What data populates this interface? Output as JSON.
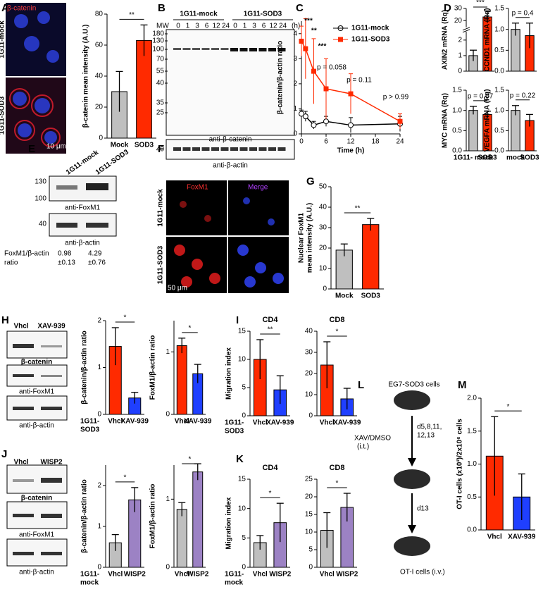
{
  "figure": {
    "panel_letters": [
      "A",
      "B",
      "C",
      "D",
      "E",
      "F",
      "G",
      "H",
      "I",
      "J",
      "K",
      "L",
      "M"
    ],
    "A": {
      "stain": "β-catenin",
      "rows": [
        "1G11-mock",
        "1G11-SOD3"
      ],
      "scale": "10 μm"
    },
    "B": {
      "groups": [
        "1G11-mock",
        "1G11-SOD3"
      ],
      "mw_header": "MW",
      "times": [
        "0",
        "1",
        "3",
        "6",
        "12",
        "24",
        "0",
        "1",
        "3",
        "6",
        "12",
        "24"
      ],
      "unit": "(h)",
      "mw": [
        "180",
        "130",
        "100",
        "70",
        "55",
        "40",
        "35",
        "25"
      ],
      "actin_mw": "40",
      "labels": [
        "anti-β-catenin",
        "anti-β-actin"
      ]
    },
    "E": {
      "lanes": [
        "1G11-mock",
        "1G11-SOD3"
      ],
      "mw": [
        "130",
        "100"
      ],
      "actin_mw": "40",
      "labels": [
        "anti-FoxM1",
        "anti-β-actin"
      ],
      "ratio_label": [
        "FoxM1/β-actin",
        "ratio"
      ],
      "ratios": [
        "0.98",
        "±0.13",
        "4.29",
        "±0.76"
      ]
    },
    "F": {
      "channels": [
        "FoxM1",
        "Merge"
      ],
      "rows": [
        "1G11-mock",
        "1G11-SOD3"
      ],
      "scale": "50 μm"
    },
    "H": {
      "lanes": [
        "Vhcl",
        "XAV-939"
      ],
      "labels": [
        "β-catenin",
        "anti-FoxM1",
        "anti-β-actin"
      ]
    },
    "J": {
      "lanes": [
        "Vhcl",
        "WISP2"
      ],
      "labels": [
        "β-catenin",
        "anti-FoxM1",
        "anti-β-actin"
      ]
    },
    "L": {
      "cells": "EG7-SOD3 cells",
      "treatment": [
        "XAV/DMSO",
        "(i.t.)"
      ],
      "days": [
        "d5,8,11,",
        "12,13"
      ],
      "end": "d13",
      "injection": "OT-I cells (i.v.)"
    }
  },
  "chart_data": [
    {
      "type": "bar",
      "ylabel": "β-catenin mean intensity (A.U.)",
      "categories": [
        "Mock",
        "SOD3"
      ],
      "values": [
        30,
        63
      ],
      "errors": [
        13,
        10
      ],
      "colors": [
        "#bfbfbf",
        "#ff2a00"
      ],
      "ylim": [
        0,
        80
      ],
      "yticks": [
        0,
        20,
        40,
        60,
        80
      ],
      "annotation": "**"
    },
    {
      "type": "line",
      "ylabel": "β-catenin/β-actin ratio",
      "xlabel": "Time (h)",
      "x": [
        0,
        1,
        3,
        6,
        12,
        24
      ],
      "xlim": [
        0,
        24
      ],
      "xticks": [
        0,
        6,
        12,
        18,
        24
      ],
      "ylim": [
        0,
        4.5
      ],
      "yticks": [
        0,
        1,
        2,
        3,
        4
      ],
      "series": [
        {
          "name": "1G11-mock",
          "color": "#000000",
          "marker": "circle",
          "values": [
            0.8,
            0.7,
            0.35,
            0.5,
            0.35,
            0.4
          ],
          "errors": [
            0.15,
            0.2,
            0.15,
            0.2,
            0.3,
            0.3
          ]
        },
        {
          "name": "1G11-SOD3",
          "color": "#ff2a00",
          "marker": "square",
          "values": [
            3.7,
            3.4,
            2.5,
            1.8,
            1.6,
            0.5
          ],
          "errors": [
            0.6,
            1.2,
            1.3,
            1.2,
            0.8,
            0.3
          ]
        }
      ],
      "annotations": [
        "***",
        "**",
        "***",
        "p = 0.058",
        "p = 0.11",
        "p > 0.99"
      ]
    },
    {
      "type": "bar",
      "ylabel": "AXIN2 mRNA (Rq)",
      "categories": [
        null,
        null
      ],
      "values": [
        1.0,
        23
      ],
      "errors": [
        0.35,
        5
      ],
      "colors": [
        "#bfbfbf",
        "#ff2a00"
      ],
      "ylim": [
        0,
        30
      ],
      "axis_break": [
        2.5,
        15
      ],
      "yticks": [
        0,
        1,
        2,
        20,
        30
      ],
      "annotation": "***"
    },
    {
      "type": "bar",
      "ylabel": "CCND1 mRNA (Rq)",
      "categories": [
        null,
        null
      ],
      "values": [
        1.0,
        0.85
      ],
      "errors": [
        0.15,
        0.3
      ],
      "colors": [
        "#bfbfbf",
        "#ff2a00"
      ],
      "ylim": [
        0,
        1.5
      ],
      "yticks": [
        {
          "value": 0,
          "label": "0.0"
        },
        {
          "value": 0.5,
          "label": "0.5"
        },
        {
          "value": 1,
          "label": "1.0"
        },
        {
          "value": 1.5,
          "label": "1.5"
        }
      ],
      "annotation": "p = 0.4"
    },
    {
      "type": "bar",
      "ylabel": "MYC mRNA (Rq)",
      "categories": [
        "1G11- mock",
        "SOD3"
      ],
      "values": [
        1.0,
        0.9
      ],
      "errors": [
        0.1,
        0.08
      ],
      "colors": [
        "#bfbfbf",
        "#ff2a00"
      ],
      "ylim": [
        0,
        1.5
      ],
      "yticks": [
        {
          "value": 0,
          "label": "0.0"
        },
        {
          "value": 0.5,
          "label": "0.5"
        },
        {
          "value": 1,
          "label": "1.0"
        },
        {
          "value": 1.5,
          "label": "1.5"
        }
      ],
      "annotation": "p = 0.07"
    },
    {
      "type": "bar",
      "ylabel": "VEGFA mRNA (Rq)",
      "categories": [
        "mock",
        "SOD3"
      ],
      "values": [
        1.0,
        0.75
      ],
      "errors": [
        0.12,
        0.15
      ],
      "colors": [
        "#bfbfbf",
        "#ff2a00"
      ],
      "ylim": [
        0,
        1.5
      ],
      "yticks": [
        {
          "value": 0,
          "label": "0.0"
        },
        {
          "value": 0.5,
          "label": "0.5"
        },
        {
          "value": 1,
          "label": "1.0"
        },
        {
          "value": 1.5,
          "label": "1.5"
        }
      ],
      "annotation": "p = 0.22"
    },
    {
      "type": "bar",
      "ylabel": [
        "Nuclear FoxM1",
        "mean intensity (A.U.)"
      ],
      "categories": [
        "Mock",
        "SOD3"
      ],
      "values": [
        19,
        31.5
      ],
      "errors": [
        3,
        3
      ],
      "colors": [
        "#bfbfbf",
        "#ff2a00"
      ],
      "ylim": [
        0,
        50
      ],
      "yticks": [
        0,
        10,
        20,
        30,
        40,
        50
      ],
      "annotation": "**"
    },
    {
      "type": "bar",
      "ylabel": "β-catenin/β-actin ratio",
      "categories": [
        "Vhcl",
        "XAV-939"
      ],
      "group_label": [
        "1G11-",
        "SOD3"
      ],
      "values": [
        1.45,
        0.35
      ],
      "errors": [
        0.4,
        0.12
      ],
      "colors": [
        "#ff2a00",
        "#1f3fff"
      ],
      "ylim": [
        0,
        2
      ],
      "yticks": [
        0,
        1,
        2
      ],
      "annotation": "*"
    },
    {
      "type": "bar",
      "ylabel": "FoxM1/β-actin ratio",
      "categories": [
        "Vhcl",
        "XAV-939"
      ],
      "values": [
        1.1,
        0.65
      ],
      "errors": [
        0.12,
        0.15
      ],
      "colors": [
        "#ff2a00",
        "#1f3fff"
      ],
      "ylim": [
        0,
        1.5
      ],
      "yticks": [
        0,
        1
      ],
      "annotation": "*"
    },
    {
      "type": "bar",
      "title": "CD4",
      "ylabel": "Migration index",
      "categories": [
        "Vhcl",
        "XAV-939"
      ],
      "group_label": [
        "1G11-",
        "SOD3"
      ],
      "values": [
        10,
        4.6
      ],
      "errors": [
        3.5,
        2.5
      ],
      "colors": [
        "#ff2a00",
        "#1f3fff"
      ],
      "ylim": [
        0,
        15
      ],
      "yticks": [
        0,
        5,
        10,
        15
      ],
      "annotation": "**"
    },
    {
      "type": "bar",
      "title": "CD8",
      "categories": [
        "Vhcl",
        "XAV-939"
      ],
      "values": [
        24,
        8
      ],
      "errors": [
        11,
        5
      ],
      "colors": [
        "#ff2a00",
        "#1f3fff"
      ],
      "ylim": [
        0,
        40
      ],
      "yticks": [
        0,
        10,
        20,
        30,
        40
      ],
      "annotation": "*"
    },
    {
      "type": "bar",
      "ylabel": "β-catenin/β-actin ratio",
      "categories": [
        "Vhcl",
        "WISP2"
      ],
      "group_label": [
        "1G11-",
        "mock"
      ],
      "values": [
        0.6,
        1.65
      ],
      "errors": [
        0.2,
        0.3
      ],
      "colors": [
        "#bfbfbf",
        "#9c82c4"
      ],
      "ylim": [
        0,
        2.5
      ],
      "yticks": [
        0,
        1,
        2
      ],
      "annotation": "*"
    },
    {
      "type": "bar",
      "ylabel": "FoxM1/β-actin ratio",
      "categories": [
        "Vhcl",
        "WISP2"
      ],
      "values": [
        0.85,
        1.4
      ],
      "errors": [
        0.1,
        0.12
      ],
      "colors": [
        "#bfbfbf",
        "#9c82c4"
      ],
      "ylim": [
        0,
        1.5
      ],
      "yticks": [
        0,
        1
      ],
      "annotation": "*"
    },
    {
      "type": "bar",
      "title": "CD4",
      "ylabel": "Migration index",
      "categories": [
        "Vhcl",
        "WISP2"
      ],
      "group_label": [
        "1G11-",
        "mock"
      ],
      "values": [
        4.2,
        7.6
      ],
      "errors": [
        1.2,
        3.3
      ],
      "colors": [
        "#bfbfbf",
        "#9c82c4"
      ],
      "ylim": [
        0,
        15
      ],
      "yticks": [
        0,
        5,
        10,
        15
      ],
      "annotation": "*"
    },
    {
      "type": "bar",
      "title": "CD8",
      "categories": [
        "Vhcl",
        "WISP2"
      ],
      "values": [
        10.5,
        17
      ],
      "errors": [
        5,
        4
      ],
      "colors": [
        "#bfbfbf",
        "#9c82c4"
      ],
      "ylim": [
        0,
        25
      ],
      "yticks": [
        0,
        5,
        10,
        15,
        20,
        25
      ],
      "annotation": "*"
    },
    {
      "type": "bar",
      "ylabel": "OT-I cells (x10³)/2x10⁶ cells",
      "categories": [
        "Vhcl",
        "XAV-939"
      ],
      "values": [
        1.12,
        0.5
      ],
      "errors": [
        0.6,
        0.35
      ],
      "colors": [
        "#ff2a00",
        "#1f3fff"
      ],
      "ylim": [
        0,
        2
      ],
      "yticks": [
        {
          "value": 0,
          "label": "0.0"
        },
        {
          "value": 0.5,
          "label": "0.5"
        },
        {
          "value": 1,
          "label": "1.0"
        },
        {
          "value": 1.5,
          "label": "1.5"
        },
        {
          "value": 2,
          "label": "2.0"
        }
      ],
      "annotation": "*"
    }
  ]
}
